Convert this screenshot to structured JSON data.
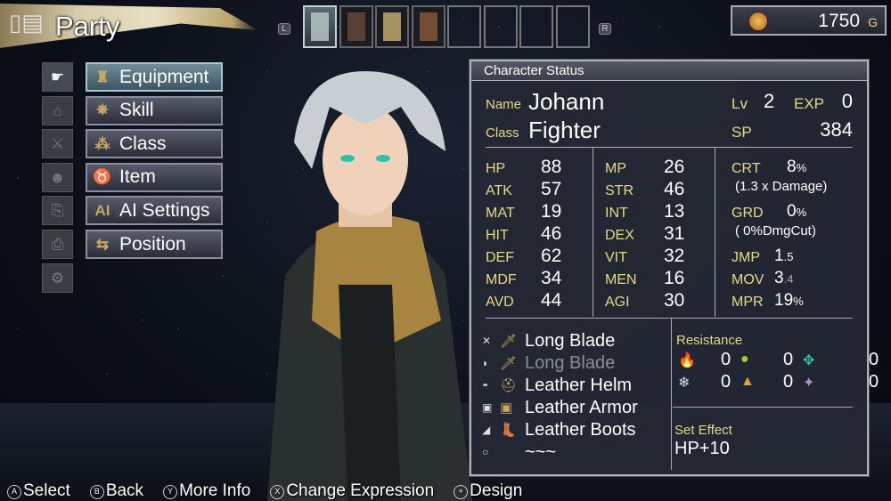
{
  "header": {
    "title": "Party",
    "icon": "party-icon",
    "shoulder_left": "L",
    "shoulder_right": "R"
  },
  "party": {
    "slots": [
      {
        "filled": true,
        "selected": true
      },
      {
        "filled": true
      },
      {
        "filled": true
      },
      {
        "filled": true
      },
      {
        "filled": false
      },
      {
        "filled": false
      },
      {
        "filled": false
      },
      {
        "filled": false
      }
    ]
  },
  "gold": {
    "value": "1750",
    "unit": "G",
    "icon": "coin-icon"
  },
  "side_icons": [
    "pointing-hand-icon",
    "shop-icon",
    "crossed-swords-icon",
    "character-icon",
    "export-icon",
    "import-icon",
    "gear-icon"
  ],
  "menu": [
    {
      "label": "Equipment",
      "icon": "armor-icon",
      "glyph": "♜",
      "selected": true
    },
    {
      "label": "Skill",
      "icon": "compass-star-icon",
      "glyph": "✵"
    },
    {
      "label": "Class",
      "icon": "class-tree-icon",
      "glyph": "⁂"
    },
    {
      "label": "Item",
      "icon": "bag-icon",
      "glyph": "♉"
    },
    {
      "label": "AI Settings",
      "icon": "ai-icon",
      "glyph": "AI"
    },
    {
      "label": "Position",
      "icon": "position-icon",
      "glyph": "⇆"
    }
  ],
  "status": {
    "title": "Character Status",
    "name_label": "Name",
    "name": "Johann",
    "class_label": "Class",
    "class": "Fighter",
    "lv_label": "Lv",
    "lv": "2",
    "exp_label": "EXP",
    "exp": "0",
    "sp_label": "SP",
    "sp": "384",
    "col1": [
      [
        "HP",
        "88"
      ],
      [
        "ATK",
        "57"
      ],
      [
        "MAT",
        "19"
      ],
      [
        "HIT",
        "46"
      ],
      [
        "DEF",
        "62"
      ],
      [
        "MDF",
        "34"
      ],
      [
        "AVD",
        "44"
      ]
    ],
    "col2": [
      [
        "MP",
        "26"
      ],
      [
        "STR",
        "46"
      ],
      [
        "INT",
        "13"
      ],
      [
        "DEX",
        "31"
      ],
      [
        "VIT",
        "32"
      ],
      [
        "MEN",
        "16"
      ],
      [
        "AGI",
        "30"
      ]
    ],
    "crt_label": "CRT",
    "crt": "8",
    "pct": "%",
    "crt_note": "(1.3 x Damage)",
    "grd_label": "GRD",
    "grd": "0",
    "grd_note": "(  0%DmgCut)",
    "jmp_label": "JMP",
    "jmp": "1",
    "jmp_dec": ".5",
    "mov_label": "MOV",
    "mov": "3",
    "mov_dec": ".4",
    "mpr_label": "MPR",
    "mpr": "19",
    "equipment": [
      {
        "slot": "weapon-slot-icon",
        "item_icon": "sword-icon",
        "name": "Long Blade",
        "dim": false
      },
      {
        "slot": "shield-slot-icon",
        "item_icon": "sword-icon",
        "name": "Long Blade",
        "dim": true
      },
      {
        "slot": "helm-slot-icon",
        "item_icon": "helm-icon",
        "name": "Leather Helm",
        "dim": false
      },
      {
        "slot": "armor-slot-icon",
        "item_icon": "armor-icon",
        "name": "Leather Armor",
        "dim": false
      },
      {
        "slot": "boots-slot-icon",
        "item_icon": "boots-icon",
        "name": "Leather Boots",
        "dim": false
      },
      {
        "slot": "accessory-slot-icon",
        "item_icon": "",
        "name": "~~~",
        "dim": false
      }
    ],
    "resistance_label": "Resistance",
    "resistances": [
      {
        "icon": "fire-icon",
        "glyph": "🔥",
        "color": "#ff6a1a",
        "value": "0"
      },
      {
        "icon": "wind-icon",
        "glyph": "●",
        "color": "#9fd12a",
        "value": "0"
      },
      {
        "icon": "light-icon",
        "glyph": "✥",
        "color": "#2fc7a8",
        "value": "0"
      },
      {
        "icon": "ice-icon",
        "glyph": "❄",
        "color": "#cde",
        "value": "0"
      },
      {
        "icon": "earth-icon",
        "glyph": "▲",
        "color": "#e3a23a",
        "value": "0"
      },
      {
        "icon": "dark-icon",
        "glyph": "✦",
        "color": "#b58fd6",
        "value": "0"
      }
    ],
    "set_effect_label": "Set Effect",
    "set_effect": "HP+10"
  },
  "controls": [
    {
      "button": "A",
      "label": "Select"
    },
    {
      "button": "B",
      "label": "Back"
    },
    {
      "button": "Y",
      "label": "More Info"
    },
    {
      "button": "X",
      "label": "Change Expression"
    },
    {
      "button": "+",
      "label": "Design"
    }
  ]
}
